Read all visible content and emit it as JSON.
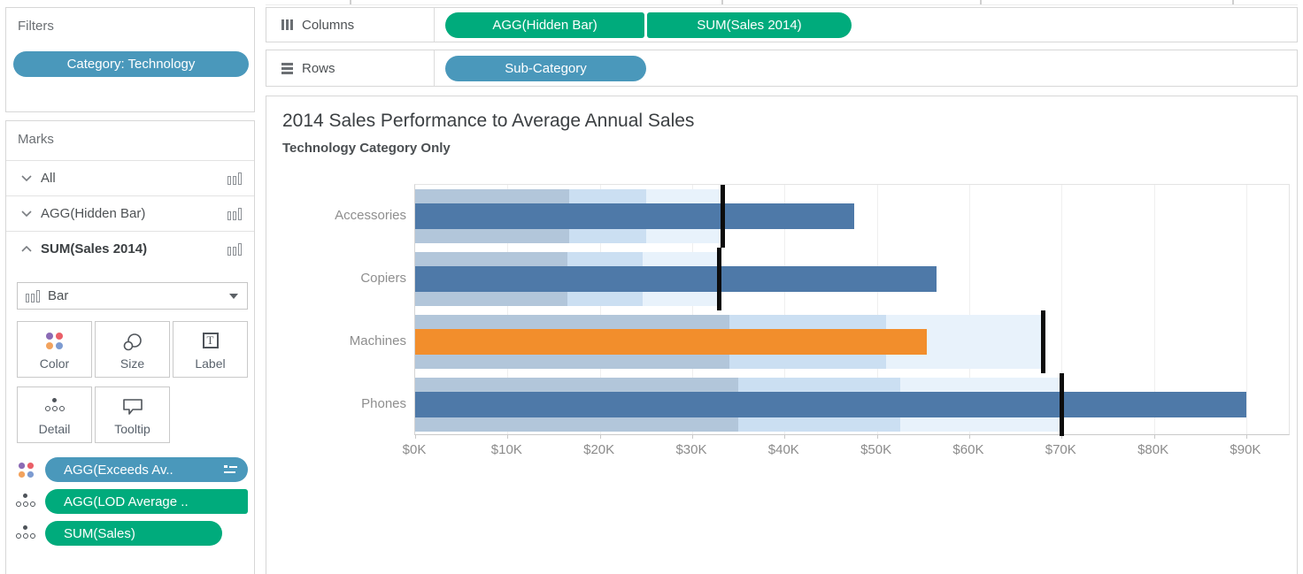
{
  "colors": {
    "pill_blue": "#4a98bb",
    "pill_green": "#00ab7c",
    "bar_blue": "#4e79a8",
    "bar_orange": "#f28e2c",
    "band_50pct": "#b2c6da",
    "band_75pct": "#cbdff2",
    "band_100pct": "#e8f2fb",
    "reference_line": "#0c0c0c"
  },
  "icons": [
    "columns-icon",
    "rows-icon",
    "chevron-down-icon",
    "chevron-up-icon",
    "bar-chart-icon",
    "color-icon",
    "size-icon",
    "label-icon",
    "detail-icon",
    "tooltip-icon",
    "dropdown-caret-icon",
    "legend-icon"
  ],
  "filters_panel": {
    "title": "Filters",
    "pills": [
      {
        "label": "Category: Technology"
      }
    ]
  },
  "shelves": {
    "columns": {
      "label": "Columns",
      "pills": [
        "AGG(Hidden Bar)",
        "SUM(Sales 2014)"
      ]
    },
    "rows": {
      "label": "Rows",
      "pills": [
        "Sub-Category"
      ]
    }
  },
  "marks_panel": {
    "title": "Marks",
    "cards": [
      {
        "label": "All",
        "state": "collapsed"
      },
      {
        "label": "AGG(Hidden Bar)",
        "state": "collapsed"
      },
      {
        "label": "SUM(Sales 2014)",
        "state": "expanded"
      }
    ],
    "mark_type_label": "Bar",
    "buttons": [
      "Color",
      "Size",
      "Label",
      "Detail",
      "Tooltip"
    ],
    "encoding_pills": [
      {
        "label": "AGG(Exceeds Av..",
        "color": "blue",
        "left_icon": "color-icon",
        "right_icon": "legend-icon"
      },
      {
        "label": "AGG(LOD Average ..",
        "color": "green",
        "left_icon": "detail-icon"
      },
      {
        "label": "SUM(Sales)",
        "color": "green",
        "left_icon": "detail-icon"
      }
    ]
  },
  "chart_data": {
    "type": "bar",
    "subtype": "bullet",
    "orientation": "horizontal",
    "title": "2014 Sales Performance to Average Annual Sales",
    "subtitle": "Technology Category Only",
    "categories": [
      "Accessories",
      "Copiers",
      "Machines",
      "Phones"
    ],
    "series": [
      {
        "name": "SUM(Sales 2014)",
        "role": "bar",
        "values": [
          47.5,
          56.5,
          55.4,
          90
        ]
      },
      {
        "name": "AGG(LOD Average Annual Sales)",
        "role": "reference_line",
        "values": [
          33.3,
          32.9,
          68,
          70
        ]
      }
    ],
    "bar_colors": [
      "#4e79a8",
      "#4e79a8",
      "#f28e2c",
      "#4e79a8"
    ],
    "highlight_category": "Machines",
    "bands_pct_of_reference": [
      100,
      75,
      50
    ],
    "band_colors": [
      "#e8f2fb",
      "#cbdff2",
      "#b2c6da"
    ],
    "x_ticks": [
      0,
      10,
      20,
      30,
      40,
      50,
      60,
      70,
      80,
      90
    ],
    "x_tick_labels": [
      "$0K",
      "$10K",
      "$20K",
      "$30K",
      "$40K",
      "$50K",
      "$60K",
      "$70K",
      "$80K",
      "$90K"
    ],
    "xlim": [
      0,
      94.8
    ],
    "unit": "USD thousands",
    "grid": "faint-vertical",
    "legend": "none"
  }
}
